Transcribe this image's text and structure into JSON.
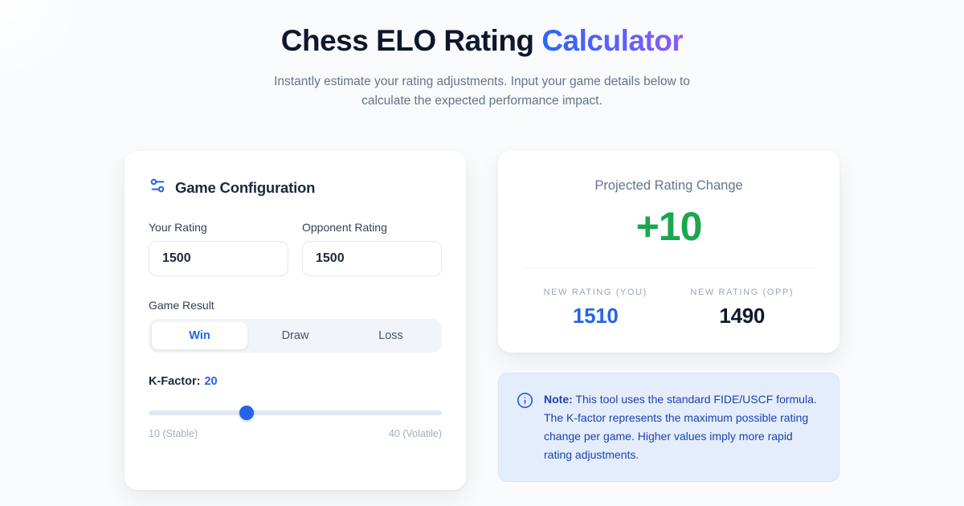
{
  "page": {
    "title_main": "Chess ELO Rating ",
    "title_accent": "Calculator",
    "subtitle": "Instantly estimate your rating adjustments. Input your game details below to calculate the expected performance impact."
  },
  "config_card": {
    "title": "Game Configuration",
    "icon": "sliders-icon",
    "fields": {
      "your_rating": {
        "label": "Your Rating",
        "value": "1500"
      },
      "opponent_rating": {
        "label": "Opponent Rating",
        "value": "1500"
      }
    },
    "game_result": {
      "label": "Game Result",
      "options": [
        "Win",
        "Draw",
        "Loss"
      ],
      "selected": "Win"
    },
    "k_factor": {
      "label": "K-Factor:",
      "value": "20",
      "min": 10,
      "max": 40,
      "min_label": "10 (Stable)",
      "max_label": "40 (Volatile)"
    }
  },
  "result_card": {
    "title": "Projected Rating Change",
    "change": "+10",
    "stats": [
      {
        "label": "NEW RATING (YOU)",
        "value": "1510"
      },
      {
        "label": "NEW RATING (OPP)",
        "value": "1490"
      }
    ]
  },
  "note": {
    "label": "Note:",
    "text": " This tool uses the standard FIDE/USCF formula. The K-factor represents the maximum possible rating change per game. Higher values imply more rapid rating adjustments."
  },
  "colors": {
    "accent_blue": "#2563eb",
    "accent_purple": "#8b5cf6",
    "positive_green": "#18a84e",
    "note_text": "#1e40af",
    "page_background": "#f8fafc"
  }
}
